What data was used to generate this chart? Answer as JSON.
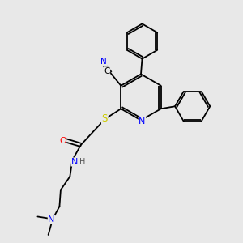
{
  "background_color": "#e8e8e8",
  "atom_colors": {
    "N": "#0000ff",
    "O": "#ff0000",
    "S": "#cccc00",
    "C": "#000000",
    "H": "#555555"
  },
  "lw": 1.3
}
